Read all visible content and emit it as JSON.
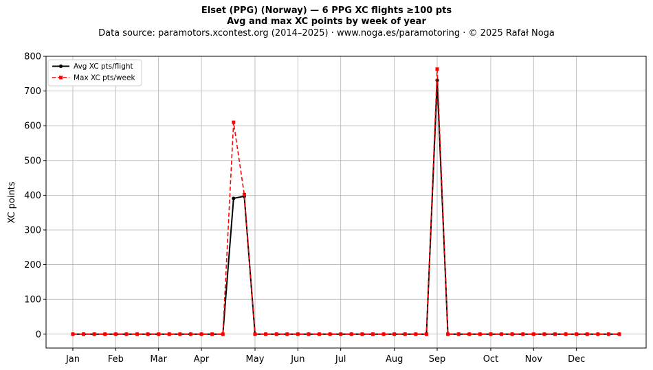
{
  "header": {
    "title_line1": "Elset (PPG) (Norway)  —  6 PPG XC flights ≥100 pts",
    "title_line2": "Avg and max XC points by week of year",
    "subtitle": "Data source: paramotors.xcontest.org (2014–2025)  ·  www.noga.es/paramotoring  ·  © 2025 Rafał Noga"
  },
  "chart_data": {
    "type": "line",
    "title": "Elset (PPG) (Norway)  —  6 PPG XC flights ≥100 pts\nAvg and max XC points by week of year",
    "xlabel": "",
    "ylabel": "XC points",
    "x_label": "week of year",
    "xlim": [
      -1.5,
      54.5
    ],
    "ylim": [
      -40,
      800
    ],
    "y_ticks": [
      0,
      100,
      200,
      300,
      400,
      500,
      600,
      700,
      800
    ],
    "x_ticks": [
      {
        "week": 1,
        "label": "Jan"
      },
      {
        "week": 5,
        "label": "Feb"
      },
      {
        "week": 9,
        "label": "Mar"
      },
      {
        "week": 13,
        "label": "Apr"
      },
      {
        "week": 18,
        "label": "May"
      },
      {
        "week": 22,
        "label": "Jun"
      },
      {
        "week": 26,
        "label": "Jul"
      },
      {
        "week": 31,
        "label": "Aug"
      },
      {
        "week": 35,
        "label": "Sep"
      },
      {
        "week": 40,
        "label": "Oct"
      },
      {
        "week": 44,
        "label": "Nov"
      },
      {
        "week": 48,
        "label": "Dec"
      }
    ],
    "x": [
      1,
      2,
      3,
      4,
      5,
      6,
      7,
      8,
      9,
      10,
      11,
      12,
      13,
      14,
      15,
      16,
      17,
      18,
      19,
      20,
      21,
      22,
      23,
      24,
      25,
      26,
      27,
      28,
      29,
      30,
      31,
      32,
      33,
      34,
      35,
      36,
      37,
      38,
      39,
      40,
      41,
      42,
      43,
      44,
      45,
      46,
      47,
      48,
      49,
      50,
      51,
      52
    ],
    "series": [
      {
        "name": "Avg XC pts/flight",
        "color": "#000000",
        "linestyle": "solid",
        "marker": "circle",
        "values": [
          0,
          0,
          0,
          0,
          0,
          0,
          0,
          0,
          0,
          0,
          0,
          0,
          0,
          0,
          0,
          391,
          397,
          0,
          0,
          0,
          0,
          0,
          0,
          0,
          0,
          0,
          0,
          0,
          0,
          0,
          0,
          0,
          0,
          0,
          731,
          0,
          0,
          0,
          0,
          0,
          0,
          0,
          0,
          0,
          0,
          0,
          0,
          0,
          0,
          0,
          0,
          0
        ]
      },
      {
        "name": "Max XC pts/week",
        "color": "#ff0000",
        "linestyle": "dashed",
        "marker": "square",
        "values": [
          0,
          0,
          0,
          0,
          0,
          0,
          0,
          0,
          0,
          0,
          0,
          0,
          0,
          0,
          0,
          610,
          402,
          0,
          0,
          0,
          0,
          0,
          0,
          0,
          0,
          0,
          0,
          0,
          0,
          0,
          0,
          0,
          0,
          0,
          763,
          0,
          0,
          0,
          0,
          0,
          0,
          0,
          0,
          0,
          0,
          0,
          0,
          0,
          0,
          0,
          0,
          0
        ]
      }
    ],
    "grid": true,
    "legend_position": "top-left"
  }
}
